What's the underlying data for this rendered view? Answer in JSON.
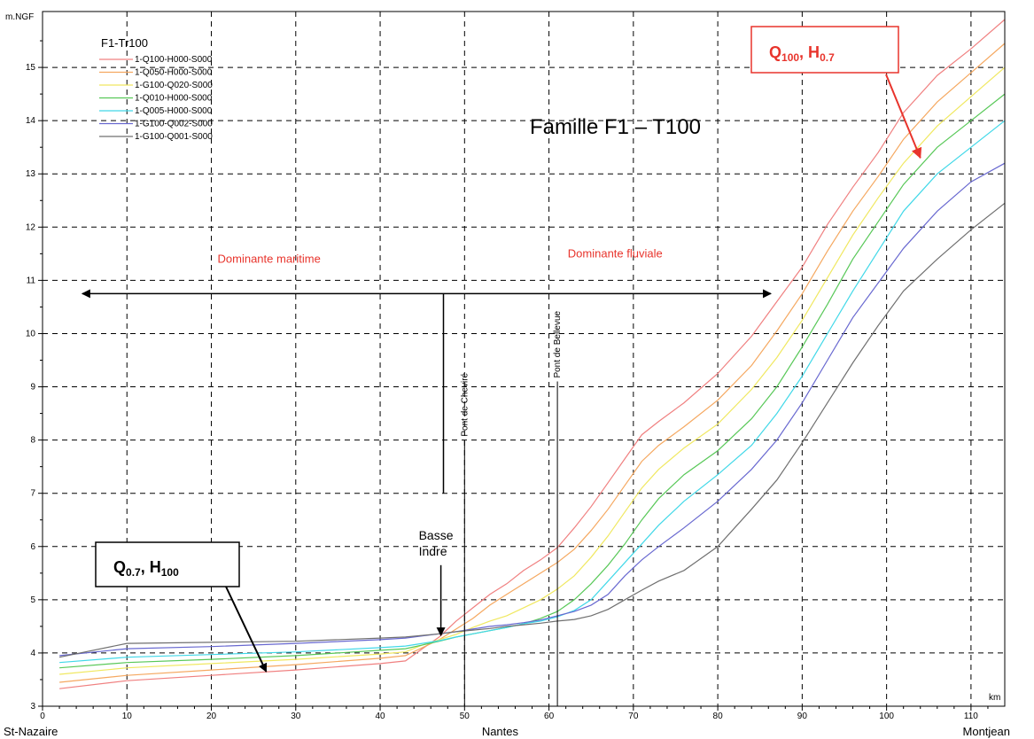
{
  "chart_data": {
    "type": "line",
    "title": "Famille F1 – T100",
    "ylabel": "m.NGF",
    "xlabel": "km",
    "xlim": [
      0,
      114
    ],
    "ylim": [
      3,
      16
    ],
    "grid": true,
    "legend": {
      "title": "F1-Tr100",
      "placement": "top-left"
    },
    "x_ticks": [
      0,
      10,
      20,
      30,
      40,
      50,
      60,
      70,
      80,
      90,
      100,
      110
    ],
    "y_ticks": [
      3,
      4,
      5,
      6,
      7,
      8,
      9,
      10,
      11,
      12,
      13,
      14,
      15
    ],
    "x": [
      2,
      10,
      20,
      30,
      40,
      43,
      45,
      47,
      49,
      51,
      53,
      55,
      57,
      59,
      61,
      63,
      65,
      67,
      69,
      71,
      73,
      76,
      80,
      84,
      87,
      90,
      93,
      96,
      99,
      102,
      106,
      110,
      114
    ],
    "series": [
      {
        "name": "1-Q100-H000-S000",
        "color": "#f08080",
        "values": [
          3.33,
          3.48,
          3.58,
          3.68,
          3.8,
          3.85,
          4.08,
          4.3,
          4.6,
          4.85,
          5.1,
          5.3,
          5.55,
          5.75,
          5.98,
          6.35,
          6.75,
          7.2,
          7.65,
          8.1,
          8.35,
          8.7,
          9.25,
          9.95,
          10.6,
          11.25,
          12.05,
          12.75,
          13.4,
          14.15,
          14.85,
          15.35,
          15.9
        ]
      },
      {
        "name": "1-Q050-H000-S000",
        "color": "#f5a860",
        "values": [
          3.45,
          3.58,
          3.68,
          3.78,
          3.9,
          3.95,
          4.1,
          4.25,
          4.45,
          4.65,
          4.9,
          5.1,
          5.3,
          5.5,
          5.7,
          5.95,
          6.3,
          6.7,
          7.15,
          7.6,
          7.9,
          8.25,
          8.75,
          9.4,
          10.05,
          10.75,
          11.55,
          12.3,
          12.95,
          13.65,
          14.35,
          14.9,
          15.45
        ]
      },
      {
        "name": "1-G100-Q020-S000",
        "color": "#f0e860",
        "values": [
          3.6,
          3.72,
          3.8,
          3.88,
          3.98,
          4.02,
          4.15,
          4.25,
          4.35,
          4.48,
          4.6,
          4.7,
          4.85,
          5.0,
          5.2,
          5.45,
          5.8,
          6.2,
          6.65,
          7.1,
          7.45,
          7.85,
          8.3,
          8.95,
          9.55,
          10.25,
          11.05,
          11.85,
          12.55,
          13.2,
          13.9,
          14.45,
          15.0
        ]
      },
      {
        "name": "1-Q010-H000-S000",
        "color": "#58c858",
        "values": [
          3.72,
          3.82,
          3.88,
          3.95,
          4.05,
          4.08,
          4.15,
          4.22,
          4.3,
          4.36,
          4.42,
          4.48,
          4.55,
          4.65,
          4.78,
          5.0,
          5.3,
          5.65,
          6.05,
          6.5,
          6.9,
          7.35,
          7.8,
          8.4,
          9.0,
          9.75,
          10.55,
          11.4,
          12.1,
          12.8,
          13.5,
          14.0,
          14.5
        ]
      },
      {
        "name": "1-Q005-H000-S000",
        "color": "#40d8e8",
        "values": [
          3.82,
          3.92,
          3.97,
          4.02,
          4.1,
          4.13,
          4.18,
          4.23,
          4.3,
          4.36,
          4.42,
          4.48,
          4.55,
          4.6,
          4.68,
          4.8,
          5.0,
          5.35,
          5.7,
          6.05,
          6.4,
          6.85,
          7.35,
          7.9,
          8.5,
          9.2,
          10.0,
          10.8,
          11.55,
          12.3,
          13.0,
          13.5,
          14.0
        ]
      },
      {
        "name": "1-G100-Q002-S000",
        "color": "#6868d0",
        "values": [
          3.95,
          4.08,
          4.12,
          4.18,
          4.25,
          4.28,
          4.32,
          4.36,
          4.4,
          4.45,
          4.5,
          4.53,
          4.57,
          4.62,
          4.7,
          4.78,
          4.9,
          5.1,
          5.45,
          5.75,
          6.0,
          6.35,
          6.85,
          7.45,
          8.0,
          8.7,
          9.5,
          10.3,
          10.95,
          11.6,
          12.3,
          12.85,
          13.2
        ]
      },
      {
        "name": "1-G100-Q001-S000",
        "color": "#707070",
        "values": [
          3.92,
          4.18,
          4.2,
          4.22,
          4.28,
          4.3,
          4.33,
          4.36,
          4.4,
          4.43,
          4.46,
          4.5,
          4.53,
          4.56,
          4.6,
          4.63,
          4.7,
          4.82,
          5.0,
          5.18,
          5.35,
          5.55,
          6.0,
          6.7,
          7.25,
          7.95,
          8.7,
          9.45,
          10.15,
          10.8,
          11.4,
          11.95,
          12.45
        ]
      }
    ],
    "locations": [
      {
        "label": "St-Nazaire",
        "km": 0
      },
      {
        "label": "Nantes",
        "km": 54
      },
      {
        "label": "Montjean",
        "km": 114
      }
    ],
    "vertical_markers": [
      {
        "label": "Pont de Cheviré",
        "km": 50,
        "top": 8.0
      },
      {
        "label": "Pont de Bellevue",
        "km": 61,
        "top": 9.1
      }
    ],
    "zones": [
      {
        "label": "Dominante maritime",
        "from_km": 4.5,
        "to_km": 47.5,
        "y": 10.75,
        "label_y": 11.4
      },
      {
        "label": "Dominante fluviale",
        "from_km": 47.5,
        "to_km": 86.5,
        "y": 10.75,
        "label_y": 11.5
      }
    ],
    "basse_indre": {
      "lines": [
        "Basse",
        "Indre"
      ],
      "km": 47.3
    },
    "callouts": [
      {
        "main1": "Q",
        "sub1": "100",
        "main2": ", H",
        "sub2": "0.7",
        "color": "#e8342c",
        "arrow_to_km": 104,
        "arrow_to_y": 13.3
      },
      {
        "main1": "Q",
        "sub1": "0.7",
        "main2": ", H",
        "sub2": "100",
        "color": "#000000",
        "arrow_to_km": 26.5,
        "arrow_to_y": 3.65
      }
    ]
  }
}
